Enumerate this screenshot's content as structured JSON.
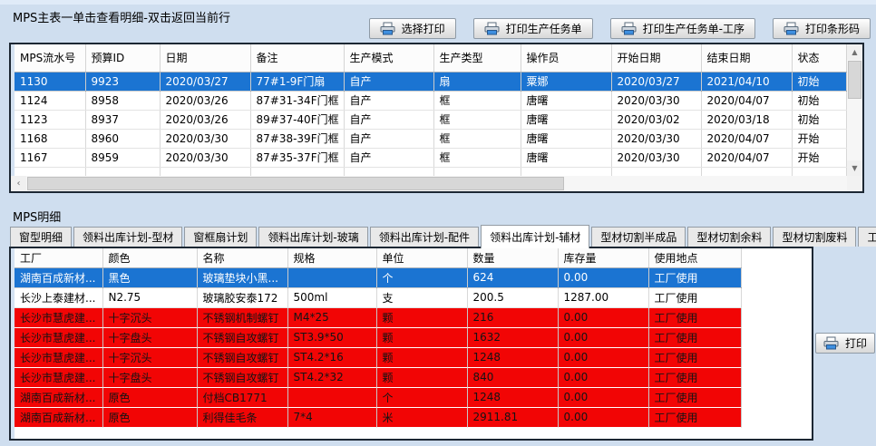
{
  "colors": {
    "background": "#cfdeef",
    "selected_row": "#1b74d2",
    "alert_row": "#f20505",
    "border_dark": "#1c2733"
  },
  "main_table": {
    "title": "MPS主表一单击查看明细-双击返回当前行",
    "buttons": [
      {
        "label": "选择打印"
      },
      {
        "label": "打印生产任务单"
      },
      {
        "label": "打印生产任务单-工序"
      },
      {
        "label": "打印条形码"
      }
    ],
    "columns": [
      "MPS流水号",
      "预算ID",
      "日期",
      "备注",
      "生产模式",
      "生产类型",
      "操作员",
      "开始日期",
      "结束日期",
      "状态"
    ],
    "rows": [
      {
        "style": "selected",
        "mps_no": "1130",
        "budget_id": "9923",
        "date": "2020/03/27",
        "remark": "77#1-9F门扇",
        "mode": "自产",
        "type": "扇",
        "operator": "粟娜",
        "start": "2020/03/27",
        "end": "2021/04/10",
        "status": "初始"
      },
      {
        "style": "",
        "mps_no": "1124",
        "budget_id": "8958",
        "date": "2020/03/26",
        "remark": "87#31-34F门框",
        "mode": "自产",
        "type": "框",
        "operator": "唐曙",
        "start": "2020/03/30",
        "end": "2020/04/07",
        "status": "初始"
      },
      {
        "style": "",
        "mps_no": "1123",
        "budget_id": "8937",
        "date": "2020/03/26",
        "remark": "89#37-40F门框",
        "mode": "自产",
        "type": "框",
        "operator": "唐曙",
        "start": "2020/03/02",
        "end": "2020/03/18",
        "status": "初始"
      },
      {
        "style": "",
        "mps_no": "1168",
        "budget_id": "8960",
        "date": "2020/03/30",
        "remark": "87#38-39F门框",
        "mode": "自产",
        "type": "框",
        "operator": "唐曙",
        "start": "2020/03/30",
        "end": "2020/04/07",
        "status": "开始"
      },
      {
        "style": "",
        "mps_no": "1167",
        "budget_id": "8959",
        "date": "2020/03/30",
        "remark": "87#35-37F门框",
        "mode": "自产",
        "type": "框",
        "operator": "唐曙",
        "start": "2020/03/30",
        "end": "2020/04/07",
        "status": "开始"
      }
    ]
  },
  "detail": {
    "title": "MPS明细",
    "tabs": [
      {
        "label": "窗型明细",
        "state": ""
      },
      {
        "label": "领料出库计划-型材",
        "state": ""
      },
      {
        "label": "窗框扇计划",
        "state": ""
      },
      {
        "label": "领料出库计划-玻璃",
        "state": ""
      },
      {
        "label": "领料出库计划-配件",
        "state": ""
      },
      {
        "label": "领料出库计划-辅材",
        "state": "active"
      },
      {
        "label": "型材切割半成品",
        "state": ""
      },
      {
        "label": "型材切割余料",
        "state": ""
      },
      {
        "label": "型材切割废料",
        "state": ""
      },
      {
        "label": "工序",
        "state": ""
      }
    ],
    "print_button_label": "打印",
    "columns": [
      "工厂",
      "颜色",
      "名称",
      "规格",
      "单位",
      "数量",
      "库存量",
      "使用地点"
    ],
    "rows": [
      {
        "style": "selected",
        "factory": "湖南百成新材...",
        "color": "黑色",
        "name": "玻璃垫块小黑...",
        "spec": "",
        "unit": "个",
        "qty": "624",
        "stock": "0.00",
        "location": "工厂使用"
      },
      {
        "style": "",
        "factory": "长沙上泰建材...",
        "color": "N2.75",
        "name": "玻璃胶安泰172",
        "spec": "500ml",
        "unit": "支",
        "qty": "200.5",
        "stock": "1287.00",
        "location": "工厂使用"
      },
      {
        "style": "alert",
        "factory": "长沙市慧虎建...",
        "color": "十字沉头",
        "name": "不锈钢机制螺钉",
        "spec": "M4*25",
        "unit": "颗",
        "qty": "216",
        "stock": "0.00",
        "location": "工厂使用"
      },
      {
        "style": "alert",
        "factory": "长沙市慧虎建...",
        "color": "十字盘头",
        "name": "不锈钢自攻螺钉",
        "spec": "ST3.9*50",
        "unit": "颗",
        "qty": "1632",
        "stock": "0.00",
        "location": "工厂使用"
      },
      {
        "style": "alert",
        "factory": "长沙市慧虎建...",
        "color": "十字沉头",
        "name": "不锈钢自攻螺钉",
        "spec": "ST4.2*16",
        "unit": "颗",
        "qty": "1248",
        "stock": "0.00",
        "location": "工厂使用"
      },
      {
        "style": "alert",
        "factory": "长沙市慧虎建...",
        "color": "十字盘头",
        "name": "不锈钢自攻螺钉",
        "spec": "ST4.2*32",
        "unit": "颗",
        "qty": "840",
        "stock": "0.00",
        "location": "工厂使用"
      },
      {
        "style": "alert",
        "factory": "湖南百成新材...",
        "color": "原色",
        "name": "付档CB1771",
        "spec": "",
        "unit": "个",
        "qty": "1248",
        "stock": "0.00",
        "location": "工厂使用"
      },
      {
        "style": "alert",
        "factory": "湖南百成新材...",
        "color": "原色",
        "name": "利得佳毛条",
        "spec": "7*4",
        "unit": "米",
        "qty": "2911.81",
        "stock": "0.00",
        "location": "工厂使用"
      }
    ]
  }
}
